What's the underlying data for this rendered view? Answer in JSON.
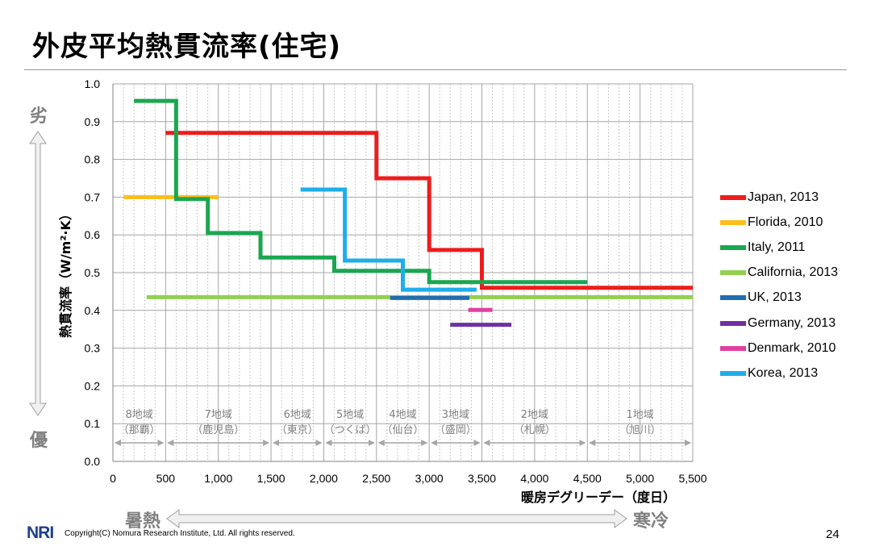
{
  "slide": {
    "title": "外皮平均熱貫流率(住宅)",
    "side_top": "劣",
    "side_bottom": "優",
    "bottom_left": "暑熱",
    "bottom_right": "寒冷",
    "copyright": "Copyright(C) Nomura Research Institute, Ltd. All rights reserved.",
    "logo": "NRI",
    "page_number": "24"
  },
  "colors": {
    "arrow": "#d0d0d0",
    "grid_major": "#a6a6a6",
    "grid_minor": "#c8c8c8",
    "region_text": "#808080"
  },
  "chart_data": {
    "type": "line",
    "xlabel": "暖房デグリーデー（度日）",
    "ylabel": "熱貫流率（W/m²·K）",
    "xlim": [
      0,
      5500
    ],
    "ylim": [
      0,
      1.0
    ],
    "x_ticks": [
      0,
      500,
      1000,
      1500,
      2000,
      2500,
      3000,
      3500,
      4000,
      4500,
      5000,
      5500
    ],
    "x_tick_labels": [
      "0",
      "500",
      "1,000",
      "1,500",
      "2,000",
      "2,500",
      "3,000",
      "3,500",
      "4,000",
      "4,500",
      "5,000",
      "5,500"
    ],
    "y_ticks": [
      0,
      0.1,
      0.2,
      0.3,
      0.4,
      0.5,
      0.6,
      0.7,
      0.8,
      0.9,
      1.0
    ],
    "y_tick_labels": [
      "0.0",
      "0.1",
      "0.2",
      "0.3",
      "0.4",
      "0.5",
      "0.6",
      "0.7",
      "0.8",
      "0.9",
      "1.0"
    ],
    "grid": true,
    "legend_position": "right",
    "series": [
      {
        "name": "Japan, 2013",
        "color": "#ee1c1c",
        "points": [
          [
            500,
            0.87
          ],
          [
            2500,
            0.87
          ],
          [
            2500,
            0.75
          ],
          [
            3000,
            0.75
          ],
          [
            3000,
            0.56
          ],
          [
            3500,
            0.56
          ],
          [
            3500,
            0.46
          ],
          [
            5500,
            0.46
          ]
        ]
      },
      {
        "name": "Florida, 2010",
        "color": "#fdbf1a",
        "points": [
          [
            100,
            0.7
          ],
          [
            1000,
            0.7
          ]
        ]
      },
      {
        "name": "Italy, 2011",
        "color": "#1aa750",
        "points": [
          [
            200,
            0.955
          ],
          [
            600,
            0.955
          ],
          [
            600,
            0.695
          ],
          [
            900,
            0.695
          ],
          [
            900,
            0.605
          ],
          [
            1400,
            0.605
          ],
          [
            1400,
            0.54
          ],
          [
            2100,
            0.54
          ],
          [
            2100,
            0.505
          ],
          [
            3000,
            0.505
          ],
          [
            3000,
            0.475
          ],
          [
            4500,
            0.475
          ]
        ]
      },
      {
        "name": "California, 2013",
        "color": "#92d050",
        "points": [
          [
            320,
            0.435
          ],
          [
            5500,
            0.435
          ]
        ]
      },
      {
        "name": "UK, 2013",
        "color": "#1f6db3",
        "points": [
          [
            2630,
            0.433
          ],
          [
            3380,
            0.433
          ]
        ]
      },
      {
        "name": "Germany, 2013",
        "color": "#7030a0",
        "points": [
          [
            3200,
            0.362
          ],
          [
            3780,
            0.362
          ]
        ]
      },
      {
        "name": "Denmark, 2010",
        "color": "#e040a0",
        "points": [
          [
            3370,
            0.401
          ],
          [
            3600,
            0.401
          ]
        ]
      },
      {
        "name": "Korea, 2013",
        "color": "#1eaeea",
        "points": [
          [
            1780,
            0.72
          ],
          [
            2200,
            0.72
          ],
          [
            2200,
            0.532
          ],
          [
            2750,
            0.532
          ],
          [
            2750,
            0.455
          ],
          [
            3450,
            0.455
          ]
        ]
      }
    ],
    "regions": [
      {
        "zone": "8地域",
        "city": "（那覇）",
        "x0": 0,
        "x1": 500
      },
      {
        "zone": "7地域",
        "city": "（鹿児島）",
        "x0": 500,
        "x1": 1500
      },
      {
        "zone": "6地域",
        "city": "（東京）",
        "x0": 1500,
        "x1": 2000
      },
      {
        "zone": "5地域",
        "city": "（つくば）",
        "x0": 2000,
        "x1": 2500
      },
      {
        "zone": "4地域",
        "city": "（仙台）",
        "x0": 2500,
        "x1": 3000
      },
      {
        "zone": "3地域",
        "city": "（盛岡）",
        "x0": 3000,
        "x1": 3500
      },
      {
        "zone": "2地域",
        "city": "（札幌）",
        "x0": 3500,
        "x1": 4500
      },
      {
        "zone": "1地域",
        "city": "（旭川）",
        "x0": 4500,
        "x1": 5500
      }
    ]
  }
}
